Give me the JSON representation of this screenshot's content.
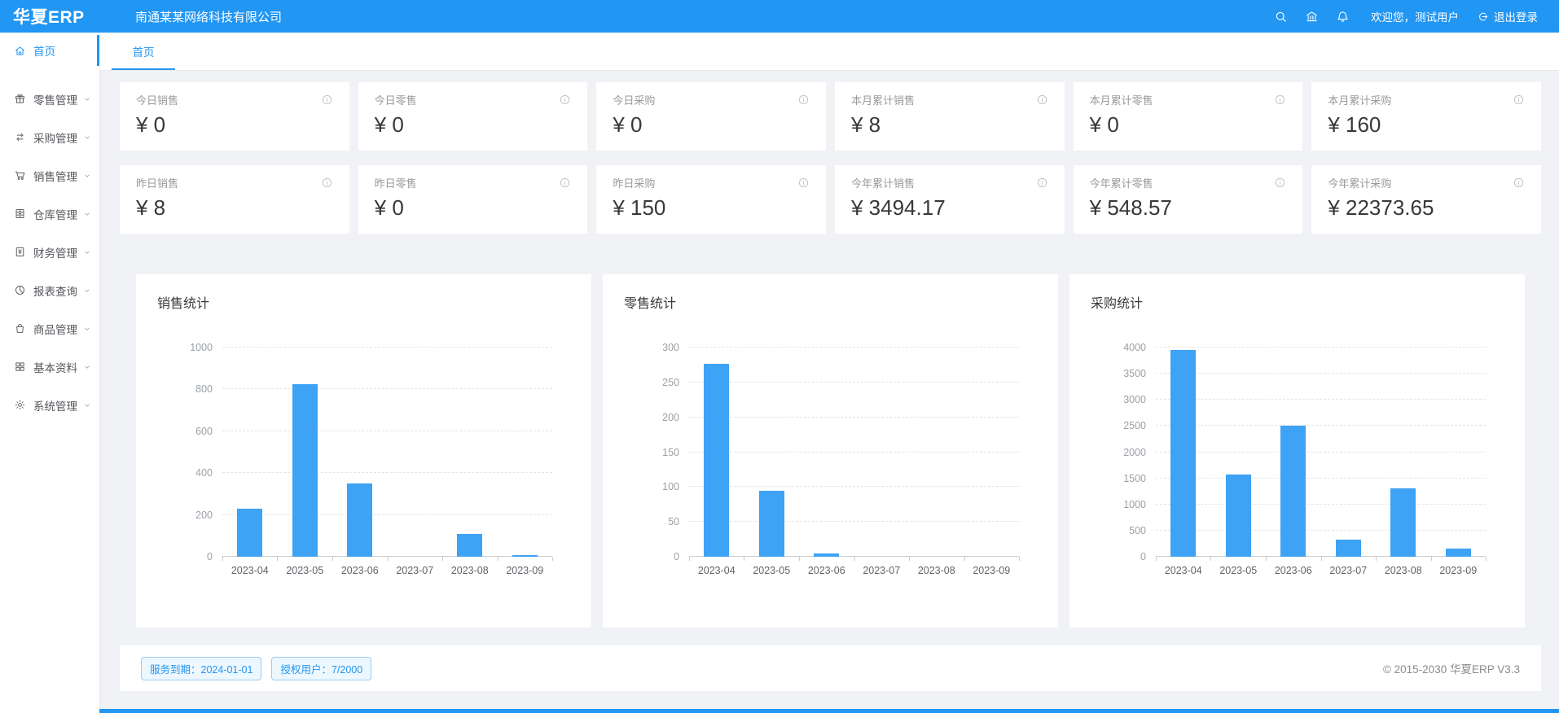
{
  "colors": {
    "primary": "#2196F3",
    "bar": "#3EA2F5",
    "badge_bg": "#EDF7FE",
    "badge_border": "#97CCF6"
  },
  "header": {
    "logo": "华夏ERP",
    "company": "南通某某网络科技有限公司",
    "welcome": "欢迎您，测试用户",
    "logout_label": "退出登录",
    "icons": [
      "search-icon",
      "bank-icon",
      "bell-icon",
      "logout-icon"
    ]
  },
  "sidebar": {
    "items": [
      {
        "id": "home",
        "label": "首页",
        "icon": "home-icon",
        "active": true,
        "has_children": false
      },
      {
        "id": "retail",
        "label": "零售管理",
        "icon": "gift-icon",
        "active": false,
        "has_children": true
      },
      {
        "id": "purchase",
        "label": "采购管理",
        "icon": "swap-icon",
        "active": false,
        "has_children": true
      },
      {
        "id": "sales",
        "label": "销售管理",
        "icon": "cart-icon",
        "active": false,
        "has_children": true
      },
      {
        "id": "warehouse",
        "label": "仓库管理",
        "icon": "storage-icon",
        "active": false,
        "has_children": true
      },
      {
        "id": "finance",
        "label": "财务管理",
        "icon": "finance-icon",
        "active": false,
        "has_children": true
      },
      {
        "id": "reports",
        "label": "报表查询",
        "icon": "pie-icon",
        "active": false,
        "has_children": true
      },
      {
        "id": "goods",
        "label": "商品管理",
        "icon": "bag-icon",
        "active": false,
        "has_children": true
      },
      {
        "id": "basic",
        "label": "基本资料",
        "icon": "grid-icon",
        "active": false,
        "has_children": true
      },
      {
        "id": "system",
        "label": "系统管理",
        "icon": "gear-icon",
        "active": false,
        "has_children": true
      }
    ]
  },
  "tabs": [
    {
      "label": "首页",
      "active": true
    }
  ],
  "stat_cards": [
    {
      "label": "今日销售",
      "value": "¥ 0"
    },
    {
      "label": "今日零售",
      "value": "¥ 0"
    },
    {
      "label": "今日采购",
      "value": "¥ 0"
    },
    {
      "label": "本月累计销售",
      "value": "¥ 8"
    },
    {
      "label": "本月累计零售",
      "value": "¥ 0"
    },
    {
      "label": "本月累计采购",
      "value": "¥ 160"
    },
    {
      "label": "昨日销售",
      "value": "¥ 8"
    },
    {
      "label": "昨日零售",
      "value": "¥ 0"
    },
    {
      "label": "昨日采购",
      "value": "¥ 150"
    },
    {
      "label": "今年累计销售",
      "value": "¥ 3494.17"
    },
    {
      "label": "今年累计零售",
      "value": "¥ 548.57"
    },
    {
      "label": "今年累计采购",
      "value": "¥ 22373.65"
    }
  ],
  "chart_data": [
    {
      "type": "bar",
      "title": "销售统计",
      "categories": [
        "2023-04",
        "2023-05",
        "2023-06",
        "2023-07",
        "2023-08",
        "2023-09"
      ],
      "values": [
        230,
        825,
        350,
        0,
        110,
        8
      ],
      "xlabel": "",
      "ylabel": "",
      "ylim": [
        0,
        1000
      ],
      "ytick_step": 200,
      "grid": true,
      "legend": false,
      "bar_color": "#3EA2F5"
    },
    {
      "type": "bar",
      "title": "零售统计",
      "categories": [
        "2023-04",
        "2023-05",
        "2023-06",
        "2023-07",
        "2023-08",
        "2023-09"
      ],
      "values": [
        277,
        95,
        5,
        0,
        0,
        0
      ],
      "xlabel": "",
      "ylabel": "",
      "ylim": [
        0,
        300
      ],
      "ytick_step": 50,
      "grid": true,
      "legend": false,
      "bar_color": "#3EA2F5"
    },
    {
      "type": "bar",
      "title": "采购统计",
      "categories": [
        "2023-04",
        "2023-05",
        "2023-06",
        "2023-07",
        "2023-08",
        "2023-09"
      ],
      "values": [
        3950,
        1580,
        2500,
        330,
        1300,
        160
      ],
      "xlabel": "",
      "ylabel": "",
      "ylim": [
        0,
        4000
      ],
      "ytick_step": 500,
      "grid": true,
      "legend": false,
      "bar_color": "#3EA2F5"
    }
  ],
  "footer": {
    "badges": [
      "服务到期：2024-01-01",
      "授权用户：7/2000"
    ],
    "copyright": "© 2015-2030 华夏ERP V3.3"
  }
}
